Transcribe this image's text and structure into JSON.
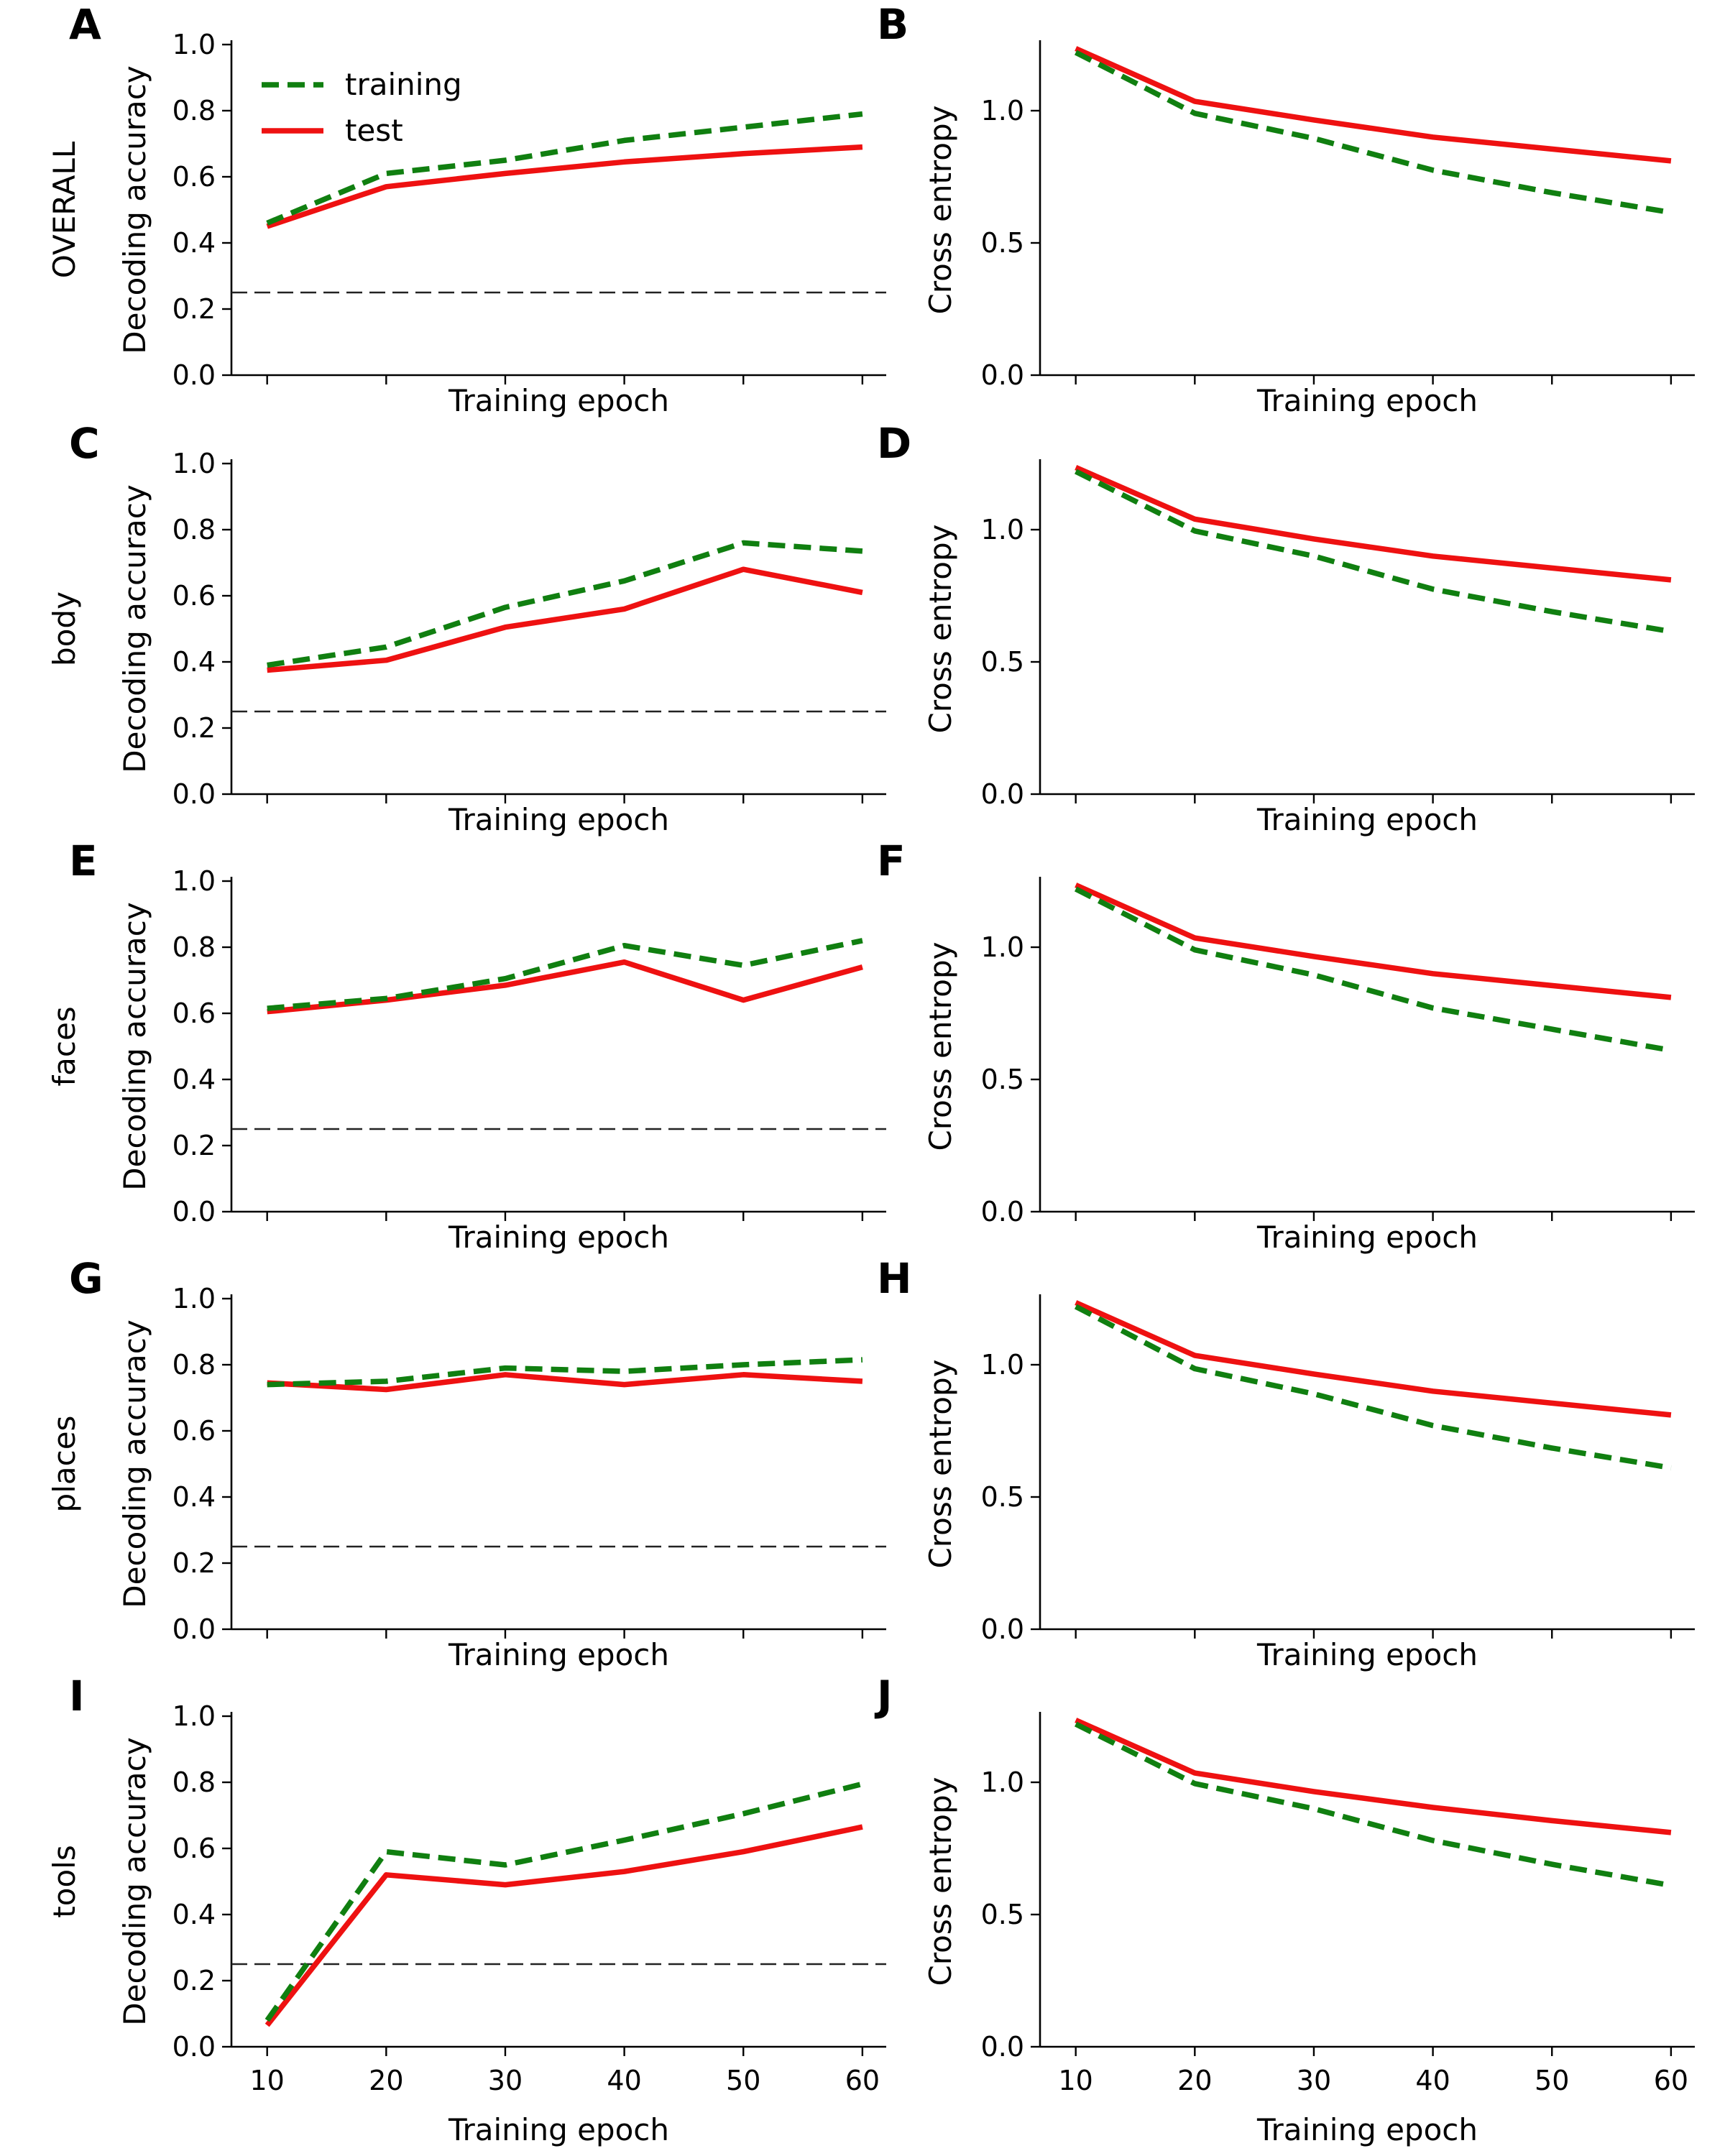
{
  "colors": {
    "training": "#107f10",
    "test": "#ee1111"
  },
  "legend": [
    {
      "key": "training",
      "label": "training",
      "dash": true
    },
    {
      "key": "test",
      "label": "test",
      "dash": false
    }
  ],
  "chart_data": [
    {
      "panel": "A",
      "type": "line",
      "row_label": "OVERALL",
      "metric": "accuracy",
      "xlabel": "Training epoch",
      "ylabel": "Decoding accuracy",
      "x": [
        10,
        20,
        30,
        40,
        50,
        60
      ],
      "xlim": [
        7,
        62
      ],
      "ylim": [
        0,
        1.0
      ],
      "yticks": [
        "0.0",
        "0.2",
        "0.4",
        "0.6",
        "0.8",
        "1.0"
      ],
      "xtick_labels": false,
      "chance_level": 0.25,
      "legend": "top-left",
      "series": [
        {
          "name": "training",
          "values": [
            0.46,
            0.61,
            0.65,
            0.71,
            0.75,
            0.79
          ]
        },
        {
          "name": "test",
          "values": [
            0.45,
            0.57,
            0.61,
            0.645,
            0.67,
            0.69
          ]
        }
      ]
    },
    {
      "panel": "B",
      "type": "line",
      "row_label": "",
      "metric": "entropy",
      "xlabel": "Training epoch",
      "ylabel": "Cross entropy",
      "x": [
        10,
        20,
        30,
        40,
        50,
        60
      ],
      "xlim": [
        7,
        62
      ],
      "ylim": [
        0,
        1.25
      ],
      "yticks": [
        "0.0",
        "0.5",
        "1.0"
      ],
      "xtick_labels": false,
      "series": [
        {
          "name": "training",
          "values": [
            1.22,
            0.99,
            0.895,
            0.775,
            0.69,
            0.615
          ]
        },
        {
          "name": "test",
          "values": [
            1.235,
            1.035,
            0.965,
            0.9,
            0.855,
            0.81
          ]
        }
      ]
    },
    {
      "panel": "C",
      "type": "line",
      "row_label": "body",
      "metric": "accuracy",
      "xlabel": "Training epoch",
      "ylabel": "Decoding accuracy",
      "x": [
        10,
        20,
        30,
        40,
        50,
        60
      ],
      "xlim": [
        7,
        62
      ],
      "ylim": [
        0,
        1.0
      ],
      "yticks": [
        "0.0",
        "0.2",
        "0.4",
        "0.6",
        "0.8",
        "1.0"
      ],
      "xtick_labels": false,
      "chance_level": 0.25,
      "series": [
        {
          "name": "training",
          "values": [
            0.39,
            0.445,
            0.565,
            0.645,
            0.76,
            0.735
          ]
        },
        {
          "name": "test",
          "values": [
            0.375,
            0.405,
            0.505,
            0.56,
            0.68,
            0.61
          ]
        }
      ]
    },
    {
      "panel": "D",
      "type": "line",
      "row_label": "",
      "metric": "entropy",
      "xlabel": "Training epoch",
      "ylabel": "Cross entropy",
      "x": [
        10,
        20,
        30,
        40,
        50,
        60
      ],
      "xlim": [
        7,
        62
      ],
      "ylim": [
        0,
        1.25
      ],
      "yticks": [
        "0.0",
        "0.5",
        "1.0"
      ],
      "xtick_labels": false,
      "series": [
        {
          "name": "training",
          "values": [
            1.22,
            0.995,
            0.9,
            0.775,
            0.69,
            0.615
          ]
        },
        {
          "name": "test",
          "values": [
            1.235,
            1.04,
            0.965,
            0.9,
            0.855,
            0.81
          ]
        }
      ]
    },
    {
      "panel": "E",
      "type": "line",
      "row_label": "faces",
      "metric": "accuracy",
      "xlabel": "Training epoch",
      "ylabel": "Decoding accuracy",
      "x": [
        10,
        20,
        30,
        40,
        50,
        60
      ],
      "xlim": [
        7,
        62
      ],
      "ylim": [
        0,
        1.0
      ],
      "yticks": [
        "0.0",
        "0.2",
        "0.4",
        "0.6",
        "0.8",
        "1.0"
      ],
      "xtick_labels": false,
      "chance_level": 0.25,
      "series": [
        {
          "name": "training",
          "values": [
            0.615,
            0.645,
            0.705,
            0.805,
            0.745,
            0.82
          ]
        },
        {
          "name": "test",
          "values": [
            0.605,
            0.64,
            0.685,
            0.755,
            0.64,
            0.74
          ]
        }
      ]
    },
    {
      "panel": "F",
      "type": "line",
      "row_label": "",
      "metric": "entropy",
      "xlabel": "Training epoch",
      "ylabel": "Cross entropy",
      "x": [
        10,
        20,
        30,
        40,
        50,
        60
      ],
      "xlim": [
        7,
        62
      ],
      "ylim": [
        0,
        1.25
      ],
      "yticks": [
        "0.0",
        "0.5",
        "1.0"
      ],
      "xtick_labels": false,
      "series": [
        {
          "name": "training",
          "values": [
            1.22,
            0.99,
            0.895,
            0.77,
            0.69,
            0.61
          ]
        },
        {
          "name": "test",
          "values": [
            1.235,
            1.035,
            0.965,
            0.9,
            0.855,
            0.81
          ]
        }
      ]
    },
    {
      "panel": "G",
      "type": "line",
      "row_label": "places",
      "metric": "accuracy",
      "xlabel": "Training epoch",
      "ylabel": "Decoding accuracy",
      "x": [
        10,
        20,
        30,
        40,
        50,
        60
      ],
      "xlim": [
        7,
        62
      ],
      "ylim": [
        0,
        1.0
      ],
      "yticks": [
        "0.0",
        "0.2",
        "0.4",
        "0.6",
        "0.8",
        "1.0"
      ],
      "xtick_labels": false,
      "chance_level": 0.25,
      "series": [
        {
          "name": "training",
          "values": [
            0.74,
            0.75,
            0.79,
            0.78,
            0.8,
            0.815
          ]
        },
        {
          "name": "test",
          "values": [
            0.745,
            0.725,
            0.77,
            0.74,
            0.77,
            0.75
          ]
        }
      ]
    },
    {
      "panel": "H",
      "type": "line",
      "row_label": "",
      "metric": "entropy",
      "xlabel": "Training epoch",
      "ylabel": "Cross entropy",
      "x": [
        10,
        20,
        30,
        40,
        50,
        60
      ],
      "xlim": [
        7,
        62
      ],
      "ylim": [
        0,
        1.25
      ],
      "yticks": [
        "0.0",
        "0.5",
        "1.0"
      ],
      "xtick_labels": false,
      "series": [
        {
          "name": "training",
          "values": [
            1.22,
            0.985,
            0.89,
            0.77,
            0.685,
            0.61
          ]
        },
        {
          "name": "test",
          "values": [
            1.235,
            1.035,
            0.965,
            0.9,
            0.855,
            0.81
          ]
        }
      ]
    },
    {
      "panel": "I",
      "type": "line",
      "row_label": "tools",
      "metric": "accuracy",
      "xlabel": "Training epoch",
      "ylabel": "Decoding accuracy",
      "x": [
        10,
        20,
        30,
        40,
        50,
        60
      ],
      "xlim": [
        7,
        62
      ],
      "ylim": [
        0,
        1.0
      ],
      "yticks": [
        "0.0",
        "0.2",
        "0.4",
        "0.6",
        "0.8",
        "1.0"
      ],
      "xtick_labels": true,
      "chance_level": 0.25,
      "series": [
        {
          "name": "training",
          "values": [
            0.08,
            0.59,
            0.55,
            0.625,
            0.705,
            0.795
          ]
        },
        {
          "name": "test",
          "values": [
            0.065,
            0.52,
            0.49,
            0.53,
            0.59,
            0.665
          ]
        }
      ]
    },
    {
      "panel": "J",
      "type": "line",
      "row_label": "",
      "metric": "entropy",
      "xlabel": "Training epoch",
      "ylabel": "Cross entropy",
      "x": [
        10,
        20,
        30,
        40,
        50,
        60
      ],
      "xlim": [
        7,
        62
      ],
      "ylim": [
        0,
        1.25
      ],
      "yticks": [
        "0.0",
        "0.5",
        "1.0"
      ],
      "xtick_labels": true,
      "series": [
        {
          "name": "training",
          "values": [
            1.22,
            0.995,
            0.9,
            0.78,
            0.69,
            0.61
          ]
        },
        {
          "name": "test",
          "values": [
            1.235,
            1.035,
            0.965,
            0.905,
            0.855,
            0.81
          ]
        }
      ]
    }
  ]
}
